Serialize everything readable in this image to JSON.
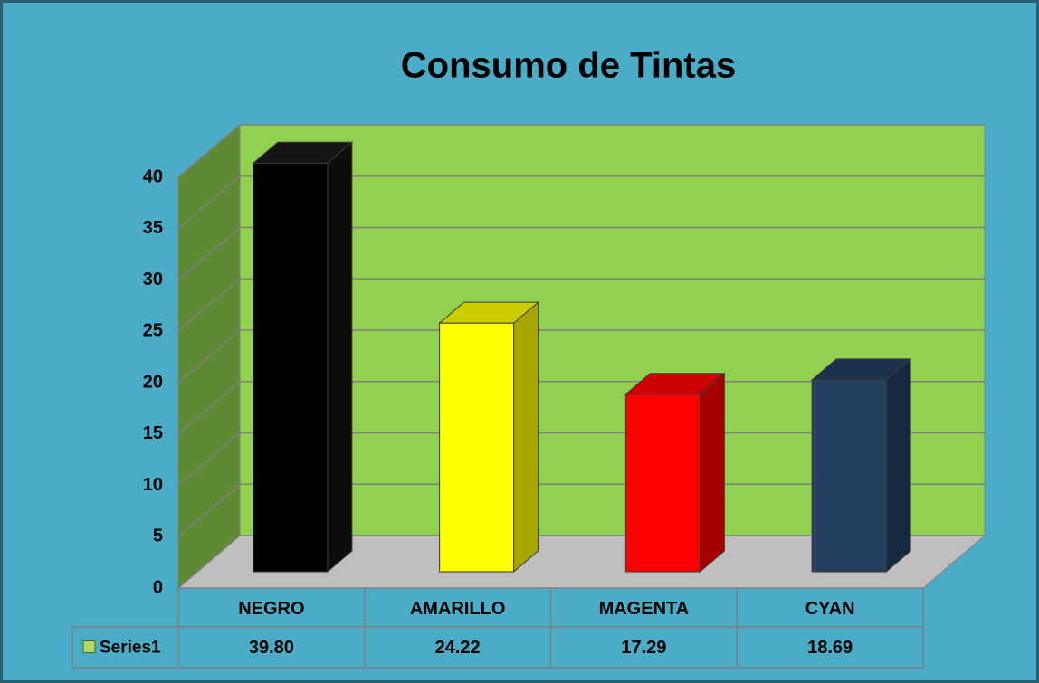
{
  "chart_data": {
    "type": "bar3d",
    "title": "Consumo de Tintas",
    "categories": [
      "NEGRO",
      "AMARILLO",
      "MAGENTA",
      "CYAN"
    ],
    "series": [
      {
        "name": "Series1",
        "color": "#b5d56a",
        "values": [
          39.8,
          24.22,
          17.29,
          18.69
        ],
        "value_labels": [
          "39.80",
          "24.22",
          "17.29",
          "18.69"
        ],
        "colors": [
          "#000000",
          "#ffff00",
          "#ff0000",
          "#243f60"
        ]
      }
    ],
    "ylim": [
      0,
      40
    ],
    "yticks": [
      0,
      5,
      10,
      15,
      20,
      25,
      30,
      35,
      40
    ],
    "grid": true,
    "legend": "bottom-left data table"
  }
}
